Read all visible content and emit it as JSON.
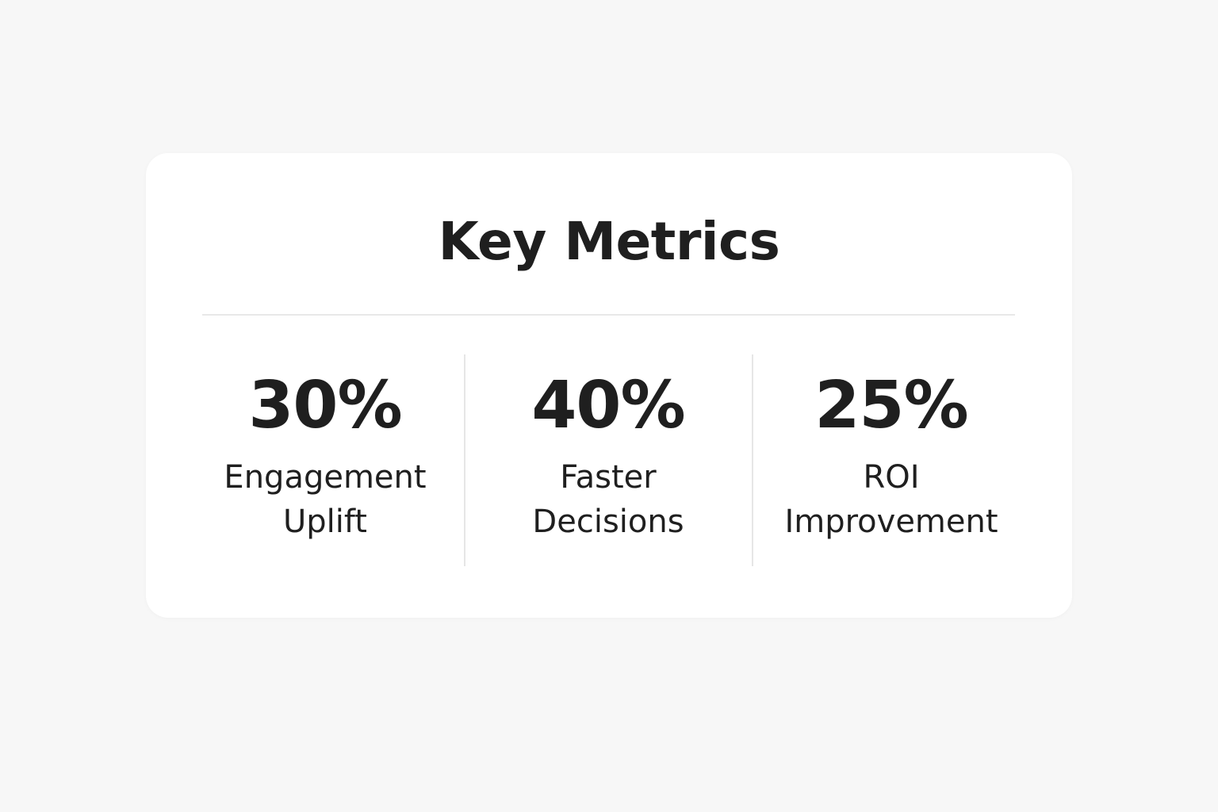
{
  "card": {
    "title": "Key Metrics",
    "metrics": [
      {
        "value": "30%",
        "label": [
          "Engagement",
          "Uplift"
        ]
      },
      {
        "value": "40%",
        "label": [
          "Faster",
          "Decisions"
        ]
      },
      {
        "value": "25%",
        "label": [
          "ROI",
          "Improvement"
        ]
      }
    ]
  }
}
